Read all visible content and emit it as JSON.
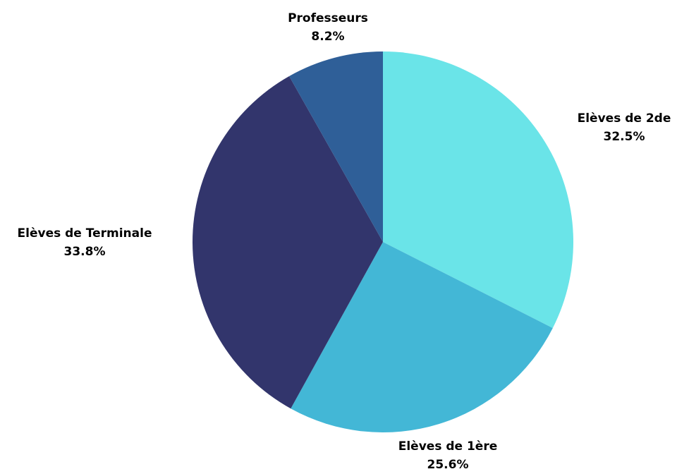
{
  "chart_data": {
    "type": "pie",
    "slices": [
      {
        "label": "Elèves de 2de",
        "percent_label": "32.5%",
        "value": 32.5,
        "color": "#6ae4e8"
      },
      {
        "label": "Elèves de 1ère",
        "percent_label": "25.6%",
        "value": 25.6,
        "color": "#43b7d6"
      },
      {
        "label": "Elèves de Terminale",
        "percent_label": "33.8%",
        "value": 33.8,
        "color": "#32356c"
      },
      {
        "label": "Professeurs",
        "percent_label": "8.2%",
        "value": 8.2,
        "color": "#2f5f98"
      }
    ],
    "start_angle": "12 o'clock",
    "direction": "clockwise",
    "legend": "none"
  }
}
